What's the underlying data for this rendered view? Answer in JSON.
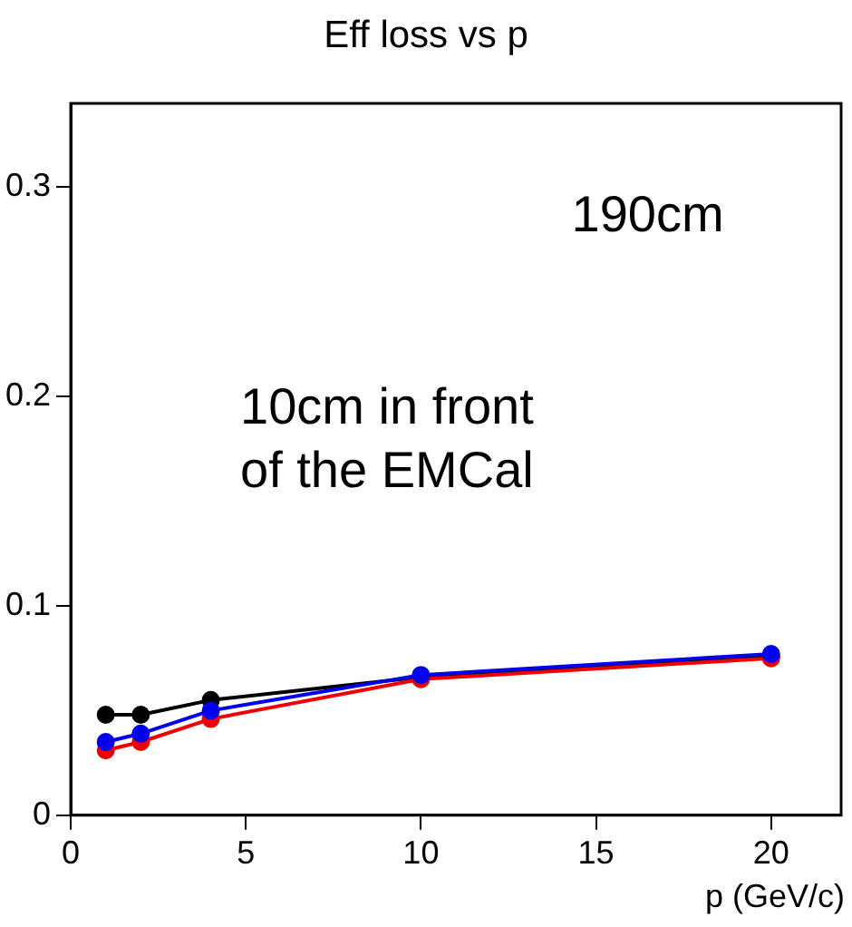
{
  "chart_data": {
    "type": "line",
    "title": "Eff loss vs p",
    "xlabel": "p (GeV/c)",
    "x": [
      1,
      2,
      4,
      10,
      20
    ],
    "series": [
      {
        "color": "#0000ee",
        "values": [
          0.035,
          0.039,
          0.05,
          0.067,
          0.077
        ]
      },
      {
        "color": "#ee0000",
        "values": [
          0.031,
          0.035,
          0.046,
          0.065,
          0.075
        ]
      },
      {
        "color": "#000000",
        "values": [
          0.048,
          0.048,
          0.055,
          0.066,
          0.076
        ]
      }
    ],
    "xlim": [
      0,
      22
    ],
    "xticks": [
      0,
      5,
      10,
      15,
      20
    ],
    "ylim": [
      0,
      0.34
    ],
    "yticks": [
      0,
      0.1,
      0.2,
      0.3
    ],
    "marker": "circle",
    "grid": false,
    "legend": false,
    "annotations": [
      "190cm",
      "10cm in front\nof the EMCal"
    ]
  }
}
